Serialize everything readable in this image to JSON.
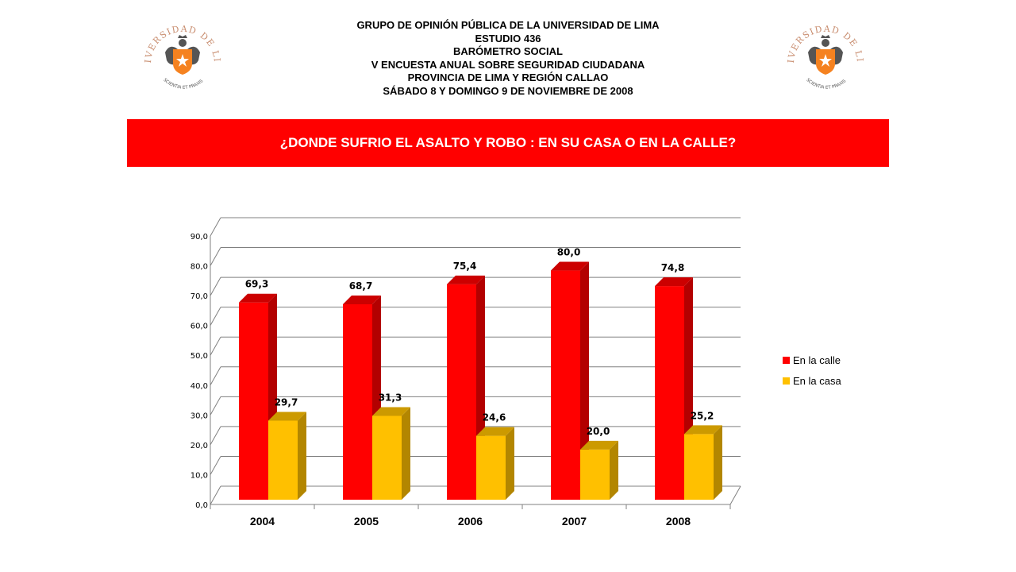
{
  "header": {
    "lines": [
      "GRUPO DE OPINIÓN PÚBLICA DE LA UNIVERSIDAD DE LIMA",
      "ESTUDIO 436",
      "BARÓMETRO SOCIAL",
      "V ENCUESTA ANUAL SOBRE SEGURIDAD CIUDADANA",
      "PROVINCIA DE LIMA Y REGIÓN CALLAO",
      "SÁBADO 8 Y DOMINGO 9 DE NOVIEMBRE DE 2008"
    ]
  },
  "logo": {
    "arc_text": "UNIVERSIDAD DE LIMA",
    "motto": "SCIENTIA ET PRAXIS",
    "colors": {
      "text": "#c88c6e",
      "shield": "#f58220",
      "crest": "#555555"
    }
  },
  "banner": {
    "title": "¿DONDE SUFRIO EL ASALTO Y ROBO : EN SU CASA O EN LA CALLE?",
    "color": "#ff0000"
  },
  "chart_data": {
    "type": "bar",
    "title": "",
    "xlabel": "",
    "ylabel": "",
    "categories": [
      "2004",
      "2005",
      "2006",
      "2007",
      "2008"
    ],
    "ylim": [
      0,
      90
    ],
    "y_ticks": [
      "0,0",
      "10,0",
      "20,0",
      "30,0",
      "40,0",
      "50,0",
      "60,0",
      "70,0",
      "80,0",
      "90,0"
    ],
    "grid": true,
    "legend_position": "right",
    "series": [
      {
        "name": "En la calle",
        "color": "#ff0000",
        "values": [
          69.3,
          68.7,
          75.4,
          80.0,
          74.8
        ],
        "labels": [
          "69,3",
          "68,7",
          "75,4",
          "80,0",
          "74,8"
        ]
      },
      {
        "name": "En la casa",
        "color": "#ffc000",
        "values": [
          29.7,
          31.3,
          24.6,
          20.0,
          25.2
        ],
        "labels": [
          "29,7",
          "31,3",
          "24,6",
          "20,0",
          "25,2"
        ]
      }
    ]
  }
}
